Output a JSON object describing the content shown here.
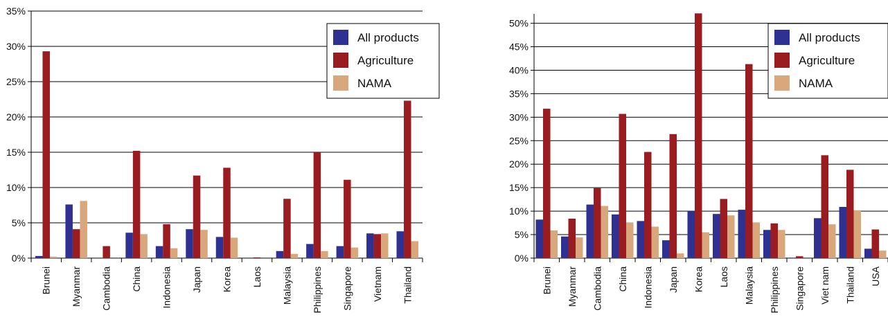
{
  "colors": {
    "all_products": "#2e3192",
    "agriculture": "#9b1c20",
    "nama": "#d9a77c",
    "gridline": "#000000",
    "text": "#111111"
  },
  "chart_data": [
    {
      "type": "bar",
      "title": "",
      "xlabel": "",
      "ylabel": "",
      "ylim": [
        0,
        35
      ],
      "y_ticks": [
        0,
        5,
        10,
        15,
        20,
        25,
        30,
        35
      ],
      "y_tick_labels": [
        "0%",
        "5%",
        "10%",
        "15%",
        "20%",
        "25%",
        "30%",
        "35%"
      ],
      "grid": true,
      "legend_position": "top-right",
      "categories": [
        "Brunei",
        "Myanmar",
        "Cambodia",
        "China",
        "Indonesia",
        "Japan",
        "Korea",
        "Laos",
        "Malaysia",
        "Philippines",
        "Singapore",
        "Vietnam",
        "Thailand"
      ],
      "series": [
        {
          "name": "All products",
          "color": "#2e3192",
          "values": [
            0.3,
            7.6,
            0.0,
            3.6,
            1.7,
            4.1,
            3.0,
            0.0,
            1.0,
            2.0,
            1.7,
            3.5,
            3.8
          ]
        },
        {
          "name": "Agriculture",
          "color": "#9b1c20",
          "values": [
            29.3,
            4.1,
            1.7,
            15.2,
            4.8,
            11.7,
            12.8,
            0.1,
            8.4,
            15.0,
            11.1,
            3.4,
            22.3
          ]
        },
        {
          "name": "NAMA",
          "color": "#d9a77c",
          "values": [
            0.2,
            8.1,
            0.0,
            3.4,
            1.4,
            4.0,
            2.9,
            0.0,
            0.6,
            1.0,
            1.5,
            3.5,
            2.4
          ]
        }
      ]
    },
    {
      "type": "bar",
      "title": "",
      "xlabel": "",
      "ylabel": "",
      "ylim": [
        0,
        52
      ],
      "y_ticks": [
        0,
        5,
        10,
        15,
        20,
        25,
        30,
        35,
        40,
        45,
        50
      ],
      "y_tick_labels": [
        "0%",
        "5%",
        "10%",
        "15%",
        "20%",
        "25%",
        "30%",
        "35%",
        "40%",
        "45%",
        "50%"
      ],
      "grid": true,
      "legend_position": "top-right",
      "categories": [
        "Brunei",
        "Myanmar",
        "Cambodia",
        "China",
        "Indonesia",
        "Japan",
        "Korea",
        "Laos",
        "Malaysia",
        "Philippines",
        "Singapore",
        "Viet nam",
        "Thailand",
        "USA"
      ],
      "series": [
        {
          "name": "All products",
          "color": "#2e3192",
          "values": [
            8.2,
            4.6,
            11.4,
            9.3,
            7.9,
            3.8,
            10.0,
            9.4,
            10.3,
            6.0,
            0.1,
            8.5,
            10.9,
            2.0
          ]
        },
        {
          "name": "Agriculture",
          "color": "#9b1c20",
          "values": [
            31.8,
            8.4,
            14.9,
            30.7,
            22.6,
            26.4,
            52.1,
            12.6,
            41.3,
            7.4,
            0.4,
            21.9,
            18.8,
            6.1
          ]
        },
        {
          "name": "NAMA",
          "color": "#d9a77c",
          "values": [
            5.9,
            4.4,
            11.1,
            7.6,
            6.7,
            1.0,
            5.5,
            9.1,
            7.6,
            6.0,
            0.0,
            7.2,
            10.2,
            1.6
          ]
        }
      ]
    }
  ]
}
